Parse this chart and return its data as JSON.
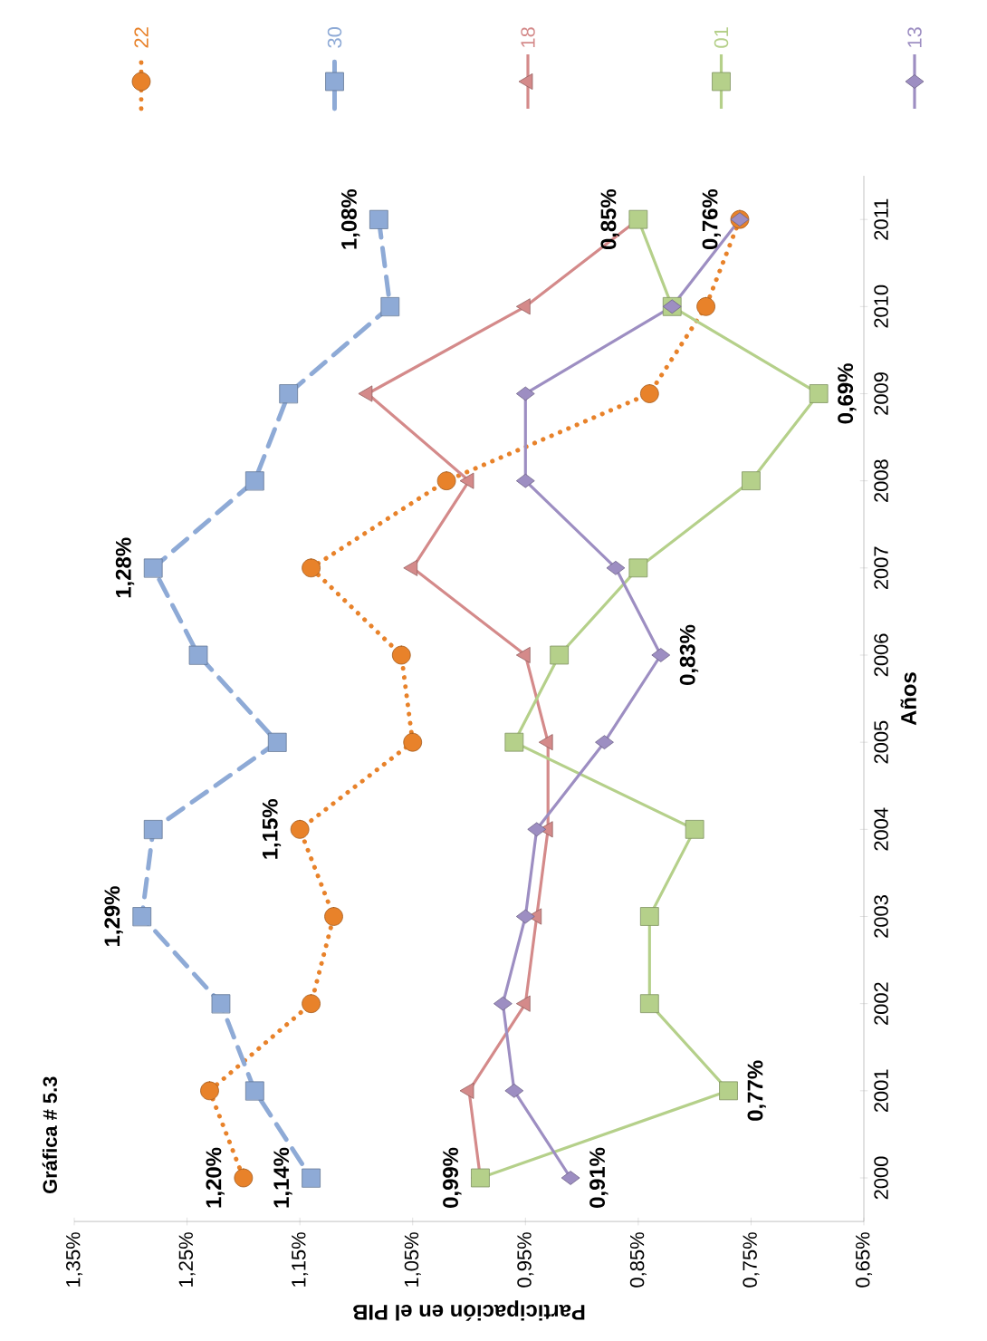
{
  "chart_data": {
    "type": "line",
    "orientation": "horizontal",
    "title": "Gráfica # 5.3",
    "ylabel": "Años",
    "xlabel": "Participación en el PIB",
    "categories": [
      "2011",
      "2010",
      "2009",
      "2008",
      "2007",
      "2006",
      "2005",
      "2004",
      "2003",
      "2002",
      "2001",
      "2000"
    ],
    "xlim": [
      1.35,
      0.65
    ],
    "xticks": [
      {
        "value": 1.35,
        "label": "1,35%"
      },
      {
        "value": 1.25,
        "label": "1,25%"
      },
      {
        "value": 1.15,
        "label": "1,15%"
      },
      {
        "value": 1.05,
        "label": "1,05%"
      },
      {
        "value": 0.95,
        "label": "0,95%"
      },
      {
        "value": 0.85,
        "label": "0,85%"
      },
      {
        "value": 0.75,
        "label": "0,75%"
      },
      {
        "value": 0.65,
        "label": "0,65%"
      }
    ],
    "grid": false,
    "legend": "top",
    "series": [
      {
        "name": "22",
        "color": "#e8822a",
        "marker": "circle",
        "line_style": "dotted",
        "values": [
          0.76,
          0.79,
          0.84,
          1.02,
          1.14,
          1.06,
          1.05,
          1.15,
          1.12,
          1.14,
          1.23,
          1.2
        ],
        "value_labels": [
          "0,76%",
          null,
          null,
          null,
          null,
          null,
          null,
          "1,15%",
          null,
          null,
          null,
          "1,20%"
        ]
      },
      {
        "name": "30",
        "color": "#8eaad6",
        "marker": "square",
        "line_style": "dashed",
        "values": [
          1.08,
          1.07,
          1.16,
          1.19,
          1.28,
          1.24,
          1.17,
          1.28,
          1.29,
          1.22,
          1.19,
          1.14
        ],
        "value_labels": [
          "1,08%",
          null,
          null,
          null,
          "1,28%",
          null,
          null,
          null,
          "1,29%",
          null,
          null,
          "1,14%"
        ]
      },
      {
        "name": "18",
        "color": "#d48a8a",
        "marker": "triangle",
        "line_style": "solid",
        "values": [
          0.85,
          0.95,
          1.09,
          1.0,
          1.05,
          0.95,
          0.93,
          0.93,
          0.94,
          0.95,
          1.0,
          0.99
        ],
        "value_labels": [
          "0,85%",
          null,
          null,
          null,
          null,
          null,
          null,
          null,
          null,
          null,
          null,
          "0,99%"
        ]
      },
      {
        "name": "01",
        "color": "#b5d08a",
        "marker": "square",
        "line_style": "solid",
        "values": [
          0.85,
          0.82,
          0.69,
          0.75,
          0.85,
          0.92,
          0.96,
          0.8,
          0.84,
          0.84,
          0.77,
          0.99
        ],
        "value_labels": [
          null,
          null,
          "0,69%",
          null,
          null,
          null,
          null,
          null,
          null,
          null,
          "0,77%",
          null
        ]
      },
      {
        "name": "13",
        "color": "#9d8ec2",
        "marker": "diamond",
        "line_style": "solid",
        "values": [
          0.76,
          0.82,
          0.95,
          0.95,
          0.87,
          0.83,
          0.88,
          0.94,
          0.95,
          0.97,
          0.96,
          0.91
        ],
        "value_labels": [
          null,
          null,
          null,
          null,
          null,
          "0,83%",
          null,
          null,
          null,
          null,
          null,
          "0,91%"
        ]
      }
    ]
  }
}
